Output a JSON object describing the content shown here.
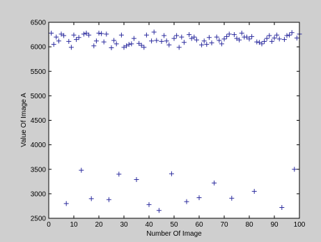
{
  "figure": {
    "background": "#cfcfcf",
    "axes_background": "#ffffff",
    "marker_color": "#2b2b9e"
  },
  "chart_data": {
    "type": "scatter",
    "title": "",
    "xlabel": "Number Of Image",
    "ylabel": "Value Of Image A",
    "xlim": [
      0,
      100
    ],
    "ylim": [
      2500,
      6500
    ],
    "xticks": [
      0,
      10,
      20,
      30,
      40,
      50,
      60,
      70,
      80,
      90,
      100
    ],
    "yticks": [
      2500,
      3000,
      3500,
      4000,
      4500,
      5000,
      5500,
      6000,
      6500
    ],
    "grid": false,
    "marker": "+",
    "series": [
      {
        "x": [
          1,
          2,
          3,
          4,
          5,
          6,
          7,
          8,
          9,
          10,
          11,
          12,
          13,
          14,
          15,
          16,
          17,
          18,
          19,
          20,
          21,
          22,
          23,
          24,
          25,
          26,
          27,
          28,
          29,
          30,
          31,
          32,
          33,
          34,
          35,
          36,
          37,
          38,
          39,
          40,
          41,
          42,
          43,
          44,
          45,
          46,
          47,
          48,
          49,
          50,
          51,
          52,
          53,
          54,
          55,
          56,
          57,
          58,
          59,
          60,
          61,
          62,
          63,
          64,
          65,
          66,
          67,
          68,
          69,
          70,
          71,
          72,
          73,
          74,
          75,
          76,
          77,
          78,
          79,
          80,
          81,
          82,
          83,
          84,
          85,
          86,
          87,
          88,
          89,
          90,
          91,
          92,
          93,
          94,
          95,
          96,
          97,
          98,
          99,
          100
        ],
        "y": [
          6280,
          6050,
          6200,
          6120,
          6260,
          6230,
          2800,
          6110,
          5990,
          6240,
          6150,
          6190,
          3480,
          6260,
          6280,
          6240,
          2900,
          6020,
          6120,
          6280,
          6270,
          6100,
          6260,
          2880,
          5980,
          6130,
          6060,
          3400,
          6240,
          5990,
          6020,
          6050,
          6060,
          6170,
          3290,
          6070,
          6030,
          5990,
          6240,
          2780,
          6120,
          6300,
          6130,
          2660,
          6110,
          6230,
          6120,
          6040,
          3410,
          6170,
          6230,
          5990,
          6200,
          6090,
          2840,
          6250,
          6170,
          6200,
          6140,
          2920,
          6040,
          6120,
          6050,
          6190,
          6080,
          3220,
          6200,
          6130,
          6060,
          6160,
          6210,
          6260,
          2910,
          6250,
          6170,
          6140,
          6280,
          6200,
          6200,
          6160,
          6210,
          3050,
          6100,
          6090,
          6060,
          6110,
          6170,
          6230,
          6110,
          6180,
          6240,
          6160,
          2720,
          6150,
          6230,
          6240,
          6290,
          3500,
          6180,
          6260
        ]
      }
    ]
  }
}
